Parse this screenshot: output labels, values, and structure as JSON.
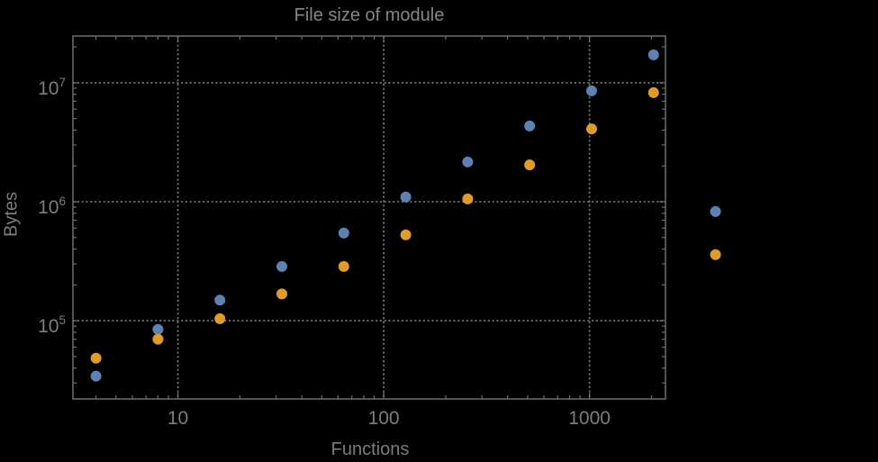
{
  "window": {
    "background": "#000000"
  },
  "chart_data": {
    "type": "scatter",
    "title": "File size of module",
    "xlabel": "Functions",
    "ylabel": "Bytes",
    "x_scale": "log",
    "y_scale": "log",
    "xlim": [
      3.09,
      2340
    ],
    "ylim": [
      22000,
      24700000
    ],
    "grid": "dotted lines at decade ticks, both axes",
    "legend": "none",
    "x_ticks": [
      {
        "value": 10,
        "label": "10"
      },
      {
        "value": 100,
        "label": "100"
      },
      {
        "value": 1000,
        "label": "1000"
      }
    ],
    "y_ticks": [
      {
        "value": 100000,
        "base": "10",
        "exp": "5"
      },
      {
        "value": 1000000,
        "base": "10",
        "exp": "6"
      },
      {
        "value": 10000000,
        "base": "10",
        "exp": "7"
      }
    ],
    "x": [
      4,
      8,
      16,
      32,
      64,
      128,
      256,
      512,
      1024,
      2048,
      4096
    ],
    "series": [
      {
        "name": "series-blue",
        "color": "#5e81b5",
        "values": [
          34200,
          84600,
          149000,
          286000,
          546000,
          1095000,
          2160000,
          4330000,
          8550000,
          17160000,
          828000
        ]
      },
      {
        "name": "series-orange",
        "color": "#e19c24",
        "values": [
          48400,
          69900,
          104000,
          168000,
          286000,
          527000,
          1057000,
          2040000,
          4090000,
          8260000,
          359000
        ]
      }
    ],
    "style": {
      "frame_color": "#6f6f6f",
      "grid_color": "#6f6f6f",
      "tick_label_color": "#7d7d7d",
      "axis_label_color": "#7d7d7d",
      "title_color": "#868686",
      "background": "#000000"
    }
  }
}
